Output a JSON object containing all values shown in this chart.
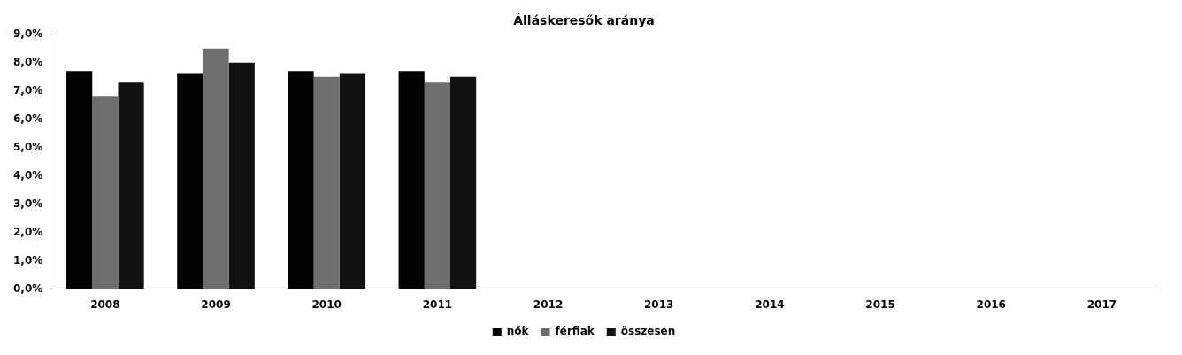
{
  "chart_data": {
    "type": "bar",
    "title": "Álláskeresők aránya",
    "categories": [
      "2008",
      "2009",
      "2010",
      "2011",
      "2012",
      "2013",
      "2014",
      "2015",
      "2016",
      "2017"
    ],
    "series": [
      {
        "name": "nők",
        "color": "#000000",
        "values": [
          7.7,
          7.6,
          7.7,
          7.7,
          null,
          null,
          null,
          null,
          null,
          null
        ]
      },
      {
        "name": "férfiak",
        "color": "#6e6e6e",
        "values": [
          6.8,
          8.5,
          7.5,
          7.3,
          null,
          null,
          null,
          null,
          null,
          null
        ]
      },
      {
        "name": "összesen",
        "color": "#111111",
        "values": [
          7.3,
          8.0,
          7.6,
          7.5,
          null,
          null,
          null,
          null,
          null,
          null
        ]
      }
    ],
    "ylim": [
      0,
      9
    ],
    "yticks": [
      {
        "value": 0,
        "label": "0,0%"
      },
      {
        "value": 1,
        "label": "1,0%"
      },
      {
        "value": 2,
        "label": "2,0%"
      },
      {
        "value": 3,
        "label": "3,0%"
      },
      {
        "value": 4,
        "label": "4,0%"
      },
      {
        "value": 5,
        "label": "5,0%"
      },
      {
        "value": 6,
        "label": "6,0%"
      },
      {
        "value": 7,
        "label": "7,0%"
      },
      {
        "value": 8,
        "label": "8,0%"
      },
      {
        "value": 9,
        "label": "9,0%"
      }
    ],
    "grid": false,
    "legend": "bottom"
  }
}
